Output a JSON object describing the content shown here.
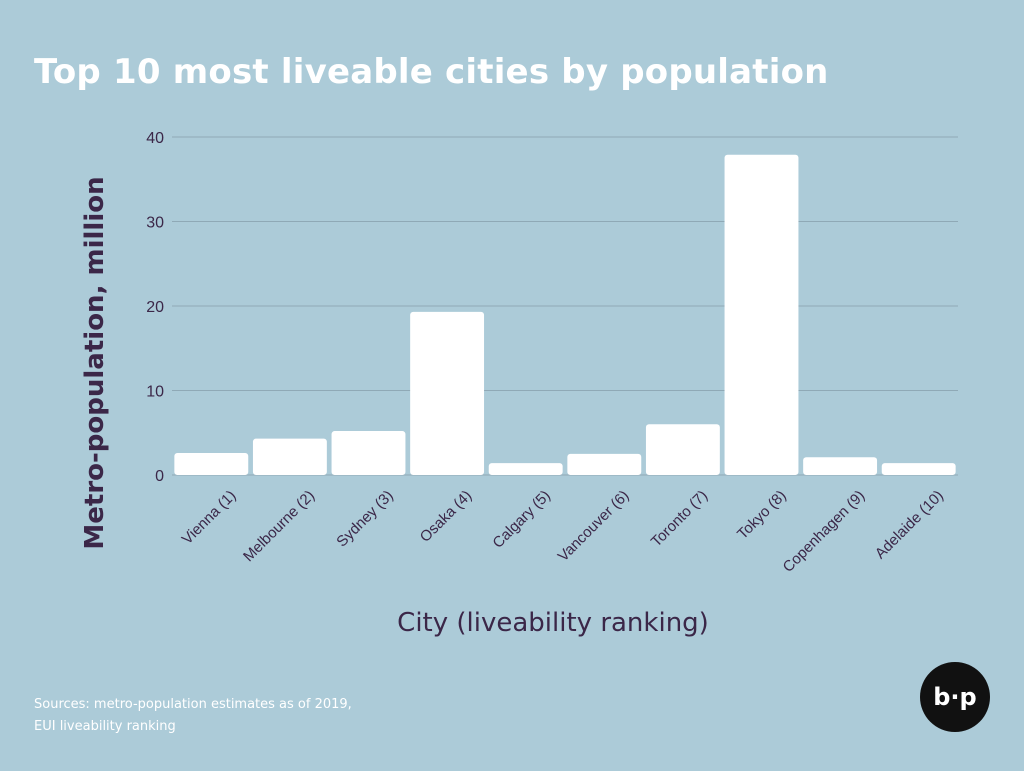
{
  "page": {
    "title": "Top 10 most liveable cities by population",
    "sources_line1": "Sources: metro-population estimates as of 2019,",
    "sources_line2": "EUI liveability ranking",
    "logo_text": "b·p"
  },
  "colors": {
    "background": "#accbd8",
    "bar": "#ffffff",
    "gridline": "#8fa9b6",
    "axis_text": "#3b2748",
    "title": "#ffffff"
  },
  "chart_data": {
    "type": "bar",
    "categories": [
      "Vienna (1)",
      "Melbourne (2)",
      "Sydney (3)",
      "Osaka (4)",
      "Calgary (5)",
      "Vancouver (6)",
      "Toronto (7)",
      "Tokyo (8)",
      "Copenhagen (9)",
      "Adelaide (10)"
    ],
    "values": [
      2.6,
      4.3,
      5.2,
      19.3,
      1.4,
      2.5,
      6.0,
      37.9,
      2.1,
      1.4
    ],
    "title": "Top 10 most liveable cities by population",
    "xlabel": "City (liveability ranking)",
    "ylabel": "Metro-population, million",
    "ylim": [
      0,
      40
    ],
    "yticks": [
      0,
      10,
      20,
      30,
      40
    ],
    "grid": true
  }
}
